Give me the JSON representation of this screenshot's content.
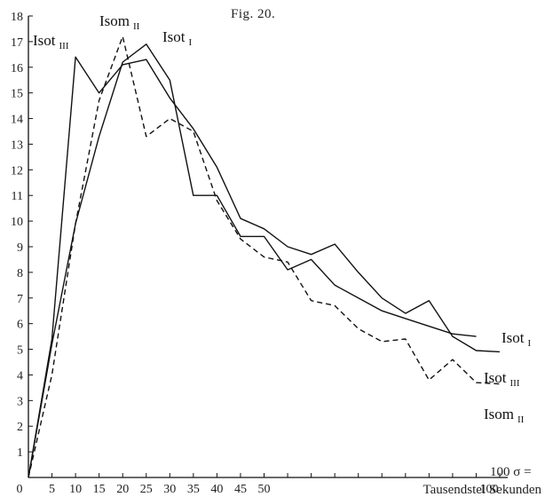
{
  "figure": {
    "title": "Fig. 20."
  },
  "chart_data": {
    "type": "line",
    "title": "Fig. 20.",
    "xlabel": "Tausendstel Sekunden",
    "xlabel_symbol": "100 σ =",
    "ylabel": "",
    "xlim": [
      0,
      100
    ],
    "ylim": [
      0,
      18
    ],
    "grid": false,
    "x_ticks": [
      0,
      5,
      10,
      15,
      20,
      25,
      30,
      35,
      40,
      45,
      50,
      100
    ],
    "x_tick_labels": [
      "0",
      "5",
      "10",
      "15",
      "20",
      "25",
      "30",
      "35",
      "40",
      "45",
      "50",
      "100"
    ],
    "y_ticks": [
      1,
      2,
      3,
      4,
      5,
      6,
      7,
      8,
      9,
      10,
      11,
      12,
      13,
      14,
      15,
      16,
      17,
      18
    ],
    "series": [
      {
        "name": "Isot I",
        "label_main": "Isot",
        "label_sub": "I",
        "style": "solid",
        "x": [
          0,
          5,
          10,
          15,
          20,
          25,
          30,
          35,
          40,
          45,
          50,
          55,
          60,
          65,
          70,
          75,
          80,
          85,
          90,
          95
        ],
        "y": [
          0,
          5.2,
          9.9,
          13.3,
          16.2,
          16.9,
          15.5,
          11.0,
          11.0,
          9.4,
          9.4,
          8.1,
          8.5,
          7.5,
          7.0,
          6.5,
          6.2,
          5.9,
          5.6,
          5.5
        ]
      },
      {
        "name": "Isom II",
        "label_main": "Isom",
        "label_sub": "II",
        "style": "dashed",
        "x": [
          0,
          5,
          10,
          15,
          20,
          25,
          30,
          35,
          40,
          45,
          50,
          55,
          60,
          65,
          70,
          75,
          80,
          85,
          90,
          95,
          100
        ],
        "y": [
          0,
          4.0,
          9.9,
          14.7,
          17.2,
          13.3,
          14.0,
          13.5,
          10.8,
          9.3,
          8.6,
          8.4,
          6.9,
          6.7,
          5.8,
          5.3,
          5.4,
          3.8,
          4.6,
          3.7,
          3.65
        ]
      },
      {
        "name": "Isot III",
        "label_main": "Isot",
        "label_sub": "III",
        "style": "solid",
        "x": [
          0,
          5,
          10,
          15,
          20,
          25,
          30,
          35,
          40,
          45,
          50,
          55,
          60,
          65,
          70,
          75,
          80,
          85,
          90,
          95,
          100
        ],
        "y": [
          0,
          5.4,
          16.4,
          15.0,
          16.1,
          16.3,
          14.8,
          13.6,
          12.1,
          10.1,
          9.7,
          9.0,
          8.7,
          9.1,
          8.0,
          7.0,
          6.4,
          6.9,
          5.5,
          4.95,
          4.9
        ]
      }
    ]
  }
}
